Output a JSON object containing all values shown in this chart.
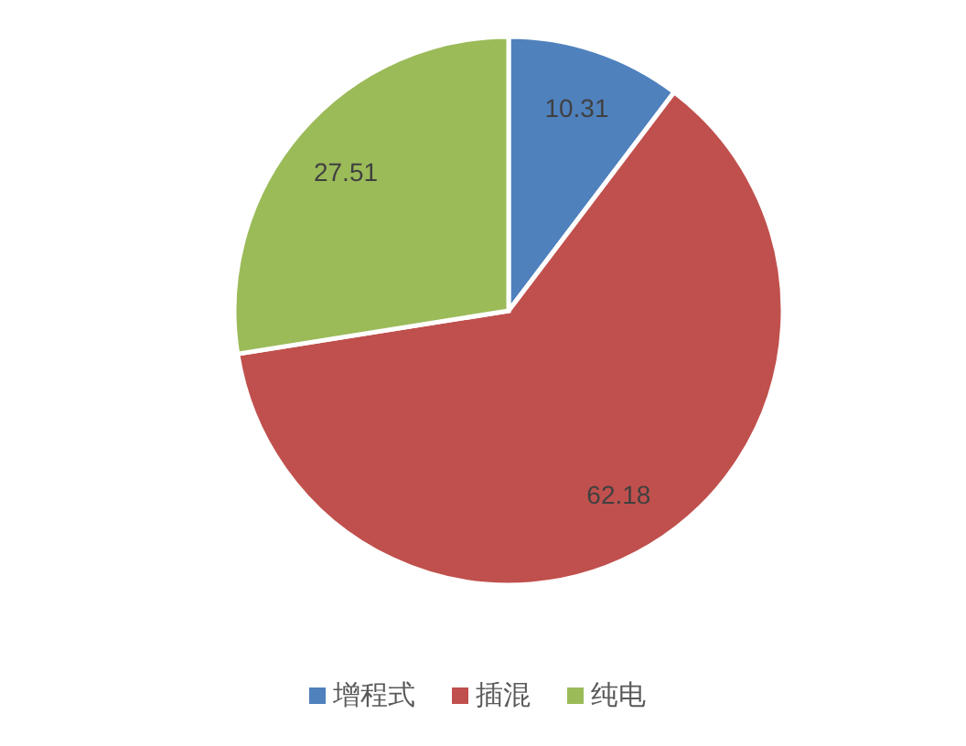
{
  "chart_data": {
    "type": "pie",
    "categories": [
      "增程式",
      "插混",
      "纯电"
    ],
    "values": [
      10.31,
      62.18,
      27.51
    ],
    "colors": [
      "#4f81bd",
      "#c0504d",
      "#9bbb59"
    ],
    "data_labels": true,
    "legend": "bottom"
  }
}
